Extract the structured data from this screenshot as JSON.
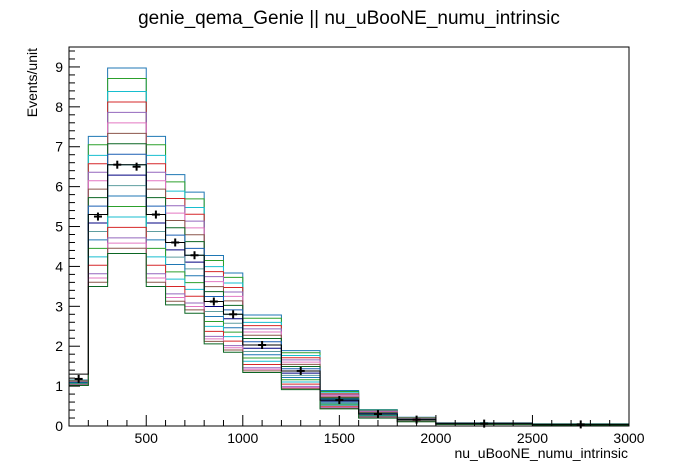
{
  "chart_data": {
    "type": "histogram",
    "title": "genie_qema_Genie || nu_uBooNE_numu_intrinsic",
    "xlabel": "nu_uBooNE_numu_intrinsic",
    "ylabel": "Events/unit",
    "xlim": [
      100,
      3000
    ],
    "ylim": [
      0,
      9.5
    ],
    "xticks": [
      500,
      1000,
      1500,
      2000,
      2500,
      3000
    ],
    "yticks": [
      0,
      1,
      2,
      3,
      4,
      5,
      6,
      7,
      8,
      9
    ],
    "bin_edges": [
      100,
      200,
      300,
      400,
      500,
      600,
      700,
      800,
      900,
      1000,
      1200,
      1400,
      1600,
      1800,
      2000,
      2500,
      3000
    ],
    "data_points": {
      "x": [
        150,
        250,
        350,
        450,
        550,
        650,
        750,
        850,
        950,
        1100,
        1300,
        1500,
        1700,
        1900,
        2250,
        2750
      ],
      "y": [
        1.18,
        5.25,
        6.55,
        6.5,
        5.3,
        4.6,
        4.28,
        3.12,
        2.8,
        2.03,
        1.38,
        0.65,
        0.3,
        0.16,
        0.06,
        0.04
      ]
    },
    "nominal": [
      1.3,
      5.3,
      6.55,
      6.55,
      5.3,
      4.6,
      4.28,
      3.12,
      2.8,
      2.03,
      1.38,
      0.65,
      0.3,
      0.16,
      0.06,
      0.04
    ],
    "universe_colors": [
      "#1f77b4",
      "#2ca02c",
      "#17becf",
      "#d62728",
      "#9467bd",
      "#e377c2",
      "#8c564b",
      "#0b6623",
      "#1a5fb4",
      "#00a0a0",
      "#000080",
      "#5f9ea0"
    ],
    "universe_factors": [
      1.37,
      1.33,
      1.28,
      1.24,
      1.2,
      1.16,
      1.12,
      1.08,
      1.04,
      1.0,
      0.96,
      0.92,
      0.88,
      0.84,
      0.8,
      0.76,
      0.72,
      0.7,
      0.68,
      0.66
    ],
    "grid": false,
    "legend": "none"
  }
}
